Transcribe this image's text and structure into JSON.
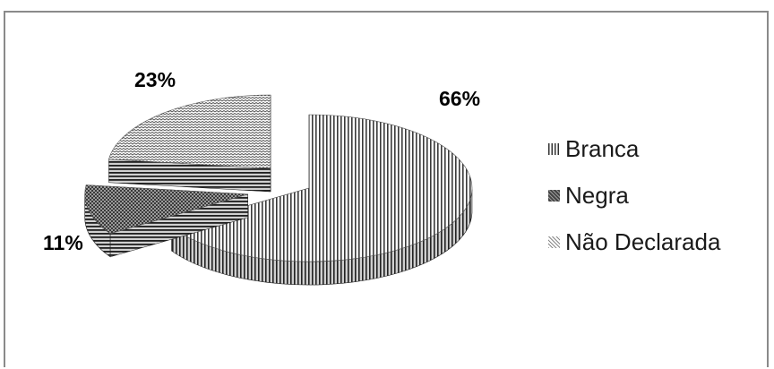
{
  "chart_data": {
    "type": "pie",
    "categories": [
      "Branca",
      "Negra",
      "Não Declarada"
    ],
    "values": [
      66,
      11,
      23
    ],
    "data_labels": [
      "66%",
      "11%",
      "23%"
    ],
    "title": "",
    "legend_position": "right",
    "three_d": true,
    "exploded": true
  }
}
